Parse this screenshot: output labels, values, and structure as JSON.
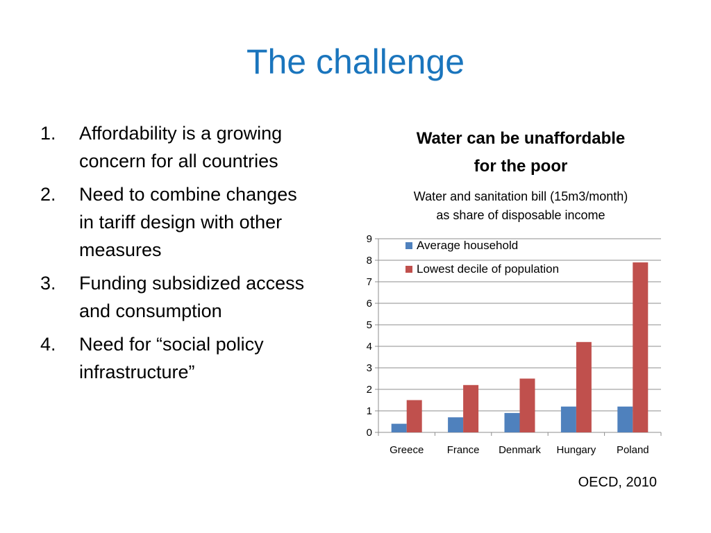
{
  "slide": {
    "title": "The challenge",
    "bullets": [
      {
        "number": "1.",
        "line1": "Affordability is a growing",
        "line2": "concern for all countries",
        "line3": ""
      },
      {
        "number": "2.",
        "line1": "Need to combine changes",
        "line2": "in tariff design with other",
        "line3": "measures"
      },
      {
        "number": "3.",
        "line1": "Funding  subsidized access",
        "line2": "and consumption",
        "line3": ""
      },
      {
        "number": "4.",
        "line1": "Need for “social policy",
        "line2": "infrastructure”",
        "line3": ""
      }
    ],
    "chart_title_line1": "Water can be unaffordable",
    "chart_title_line2": "for the poor",
    "chart_subtitle_line1": "Water and sanitation bill (15m3/month)",
    "chart_subtitle_line2": "as share of disposable income",
    "source": "OECD, 2010"
  },
  "chart_data": {
    "type": "bar",
    "categories": [
      "Greece",
      "France",
      "Denmark",
      "Hungary",
      "Poland"
    ],
    "series": [
      {
        "name": "Average household",
        "values": [
          0.4,
          0.7,
          0.9,
          1.2,
          1.2
        ],
        "color": "#4f81bd"
      },
      {
        "name": "Lowest decile of population",
        "values": [
          1.5,
          2.2,
          2.5,
          4.2,
          7.9
        ],
        "color": "#c0504d"
      }
    ],
    "ylim": [
      0,
      9
    ],
    "yticks": [
      "0",
      "1",
      "2",
      "3",
      "4",
      "5",
      "6",
      "7",
      "8",
      "9"
    ],
    "grid": true,
    "legend_position": "top-left"
  }
}
